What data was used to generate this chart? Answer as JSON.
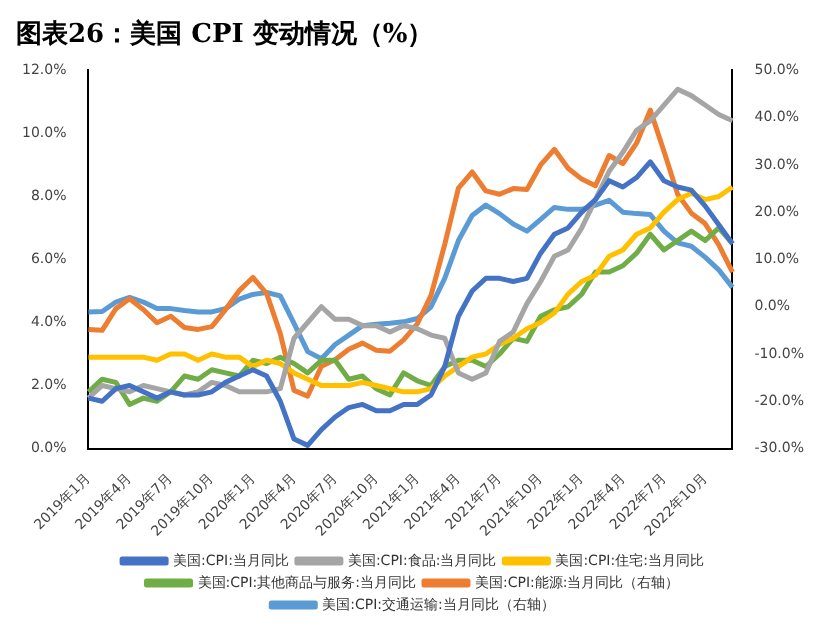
{
  "chart_data": {
    "type": "line",
    "title": "图表26：美国 CPI 变动情况（%）",
    "categories": [
      "2019年1月",
      null,
      null,
      "2019年4月",
      null,
      null,
      "2019年7月",
      null,
      null,
      "2019年10月",
      null,
      null,
      "2020年1月",
      null,
      null,
      "2020年4月",
      null,
      null,
      "2020年7月",
      null,
      null,
      "2020年10月",
      null,
      null,
      "2021年1月",
      null,
      null,
      "2021年4月",
      null,
      null,
      "2021年7月",
      null,
      null,
      "2021年10月",
      null,
      null,
      "2022年1月",
      null,
      null,
      "2022年4月",
      null,
      null,
      "2022年7月",
      null,
      null,
      "2022年10月",
      null,
      null
    ],
    "series": [
      {
        "name": "美国:CPI:当月同比",
        "color": "#4472c4",
        "values": [
          1.6,
          1.5,
          1.9,
          2.0,
          1.8,
          1.6,
          1.8,
          1.7,
          1.7,
          1.8,
          2.1,
          2.3,
          2.5,
          2.3,
          1.5,
          0.3,
          0.1,
          0.6,
          1.0,
          1.3,
          1.4,
          1.2,
          1.2,
          1.4,
          1.4,
          1.7,
          2.6,
          4.2,
          5.0,
          5.4,
          5.4,
          5.3,
          5.4,
          6.2,
          6.8,
          7.0,
          7.5,
          7.9,
          8.5,
          8.3,
          8.6,
          9.1,
          8.5,
          8.3,
          8.2,
          7.7,
          7.1,
          6.5
        ]
      },
      {
        "name": "美国:CPI:食品:当月同比",
        "color": "#a5a5a5",
        "values": [
          1.6,
          2.0,
          1.9,
          1.8,
          2.0,
          1.9,
          1.8,
          1.7,
          1.8,
          2.1,
          2.0,
          1.8,
          1.8,
          1.8,
          1.9,
          3.5,
          4.0,
          4.5,
          4.1,
          4.1,
          3.9,
          3.9,
          3.7,
          3.9,
          3.8,
          3.6,
          3.5,
          2.4,
          2.2,
          2.4,
          3.4,
          3.7,
          4.6,
          5.3,
          6.1,
          6.3,
          7.0,
          7.9,
          8.8,
          9.4,
          10.1,
          10.4,
          10.9,
          11.4,
          11.2,
          10.9,
          10.6,
          10.4
        ]
      },
      {
        "name": "美国:CPI:住宅:当月同比",
        "color": "#ffc000",
        "values": [
          2.9,
          2.9,
          2.9,
          2.9,
          2.9,
          2.8,
          3.0,
          3.0,
          2.8,
          3.0,
          2.9,
          2.9,
          2.6,
          2.8,
          2.7,
          2.4,
          2.2,
          2.0,
          2.0,
          2.0,
          2.1,
          2.0,
          1.9,
          1.8,
          1.8,
          1.9,
          2.3,
          2.6,
          2.9,
          3.0,
          3.3,
          3.5,
          3.8,
          4.0,
          4.3,
          4.9,
          5.3,
          5.5,
          6.1,
          6.3,
          6.8,
          7.0,
          7.5,
          7.9,
          8.1,
          7.9,
          8.0,
          8.3
        ]
      },
      {
        "name": "美国:CPI:其他商品与服务:当月同比",
        "color": "#70ad47",
        "values": [
          1.8,
          2.2,
          2.1,
          1.4,
          1.6,
          1.5,
          1.8,
          2.3,
          2.2,
          2.5,
          2.4,
          2.3,
          2.8,
          2.7,
          2.9,
          2.7,
          2.4,
          2.8,
          2.8,
          2.2,
          2.3,
          1.9,
          1.7,
          2.4,
          2.15,
          2.0,
          2.6,
          2.8,
          2.8,
          2.6,
          3.0,
          3.5,
          3.4,
          4.2,
          4.4,
          4.5,
          4.9,
          5.6,
          5.6,
          5.8,
          6.2,
          6.8,
          6.3,
          6.6,
          6.9,
          6.6,
          7.0,
          6.5
        ]
      },
      {
        "name": "美国:CPI:能源:当月同比（右轴）",
        "color": "#ed7d31",
        "axis": "y2",
        "values": [
          -4.8,
          -5.0,
          -0.4,
          1.7,
          -0.6,
          -3.4,
          -2.0,
          -4.4,
          -4.8,
          -4.2,
          -0.6,
          3.4,
          6.2,
          2.8,
          -5.7,
          -17.7,
          -18.9,
          -12.6,
          -11.2,
          -9.0,
          -7.7,
          -9.2,
          -9.4,
          -7.0,
          -3.6,
          2.4,
          13.2,
          25.1,
          28.5,
          24.5,
          23.8,
          25.0,
          24.8,
          30.0,
          33.3,
          29.3,
          27.0,
          25.6,
          32.0,
          30.3,
          34.6,
          41.6,
          32.9,
          23.8,
          19.8,
          17.6,
          13.1,
          7.3
        ]
      },
      {
        "name": "美国:CPI:交通运输:当月同比（右轴）",
        "color": "#5b9bd5",
        "axis": "y2",
        "values": [
          -1.1,
          -1.0,
          1.0,
          2.0,
          1.0,
          -0.4,
          -0.4,
          -0.8,
          -1.1,
          -1.1,
          -0.4,
          1.6,
          2.6,
          3.0,
          2.3,
          -3.5,
          -9.5,
          -11.0,
          -8.0,
          -6.0,
          -4.0,
          -3.7,
          -3.5,
          -3.2,
          -2.5,
          0.0,
          6.0,
          14.0,
          19.3,
          21.5,
          19.7,
          17.5,
          16.0,
          18.5,
          21.0,
          20.6,
          20.6,
          21.5,
          22.5,
          20.0,
          19.7,
          19.5,
          16.0,
          13.5,
          12.8,
          10.5,
          7.8,
          4.1
        ]
      }
    ],
    "ylim": [
      0,
      12
    ],
    "yticks": [
      {
        "value": 0,
        "label": "0.0%"
      },
      {
        "value": 2,
        "label": "2.0%"
      },
      {
        "value": 4,
        "label": "4.0%"
      },
      {
        "value": 6,
        "label": "6.0%"
      },
      {
        "value": 8,
        "label": "8.0%"
      },
      {
        "value": 10,
        "label": "10.0%"
      },
      {
        "value": 12,
        "label": "12.0%"
      }
    ],
    "y2lim": [
      -30,
      50
    ],
    "y2ticks": [
      {
        "value": -30,
        "label": "-30.0%"
      },
      {
        "value": -20,
        "label": "-20.0%"
      },
      {
        "value": -10,
        "label": "-10.0%"
      },
      {
        "value": 0,
        "label": "0.0%"
      },
      {
        "value": 10,
        "label": "10.0%"
      },
      {
        "value": 20,
        "label": "20.0%"
      },
      {
        "value": 30,
        "label": "30.0%"
      },
      {
        "value": 40,
        "label": "40.0%"
      },
      {
        "value": 50,
        "label": "50.0%"
      }
    ],
    "legend": "bottom",
    "marker": "none",
    "line_style": "solid"
  }
}
